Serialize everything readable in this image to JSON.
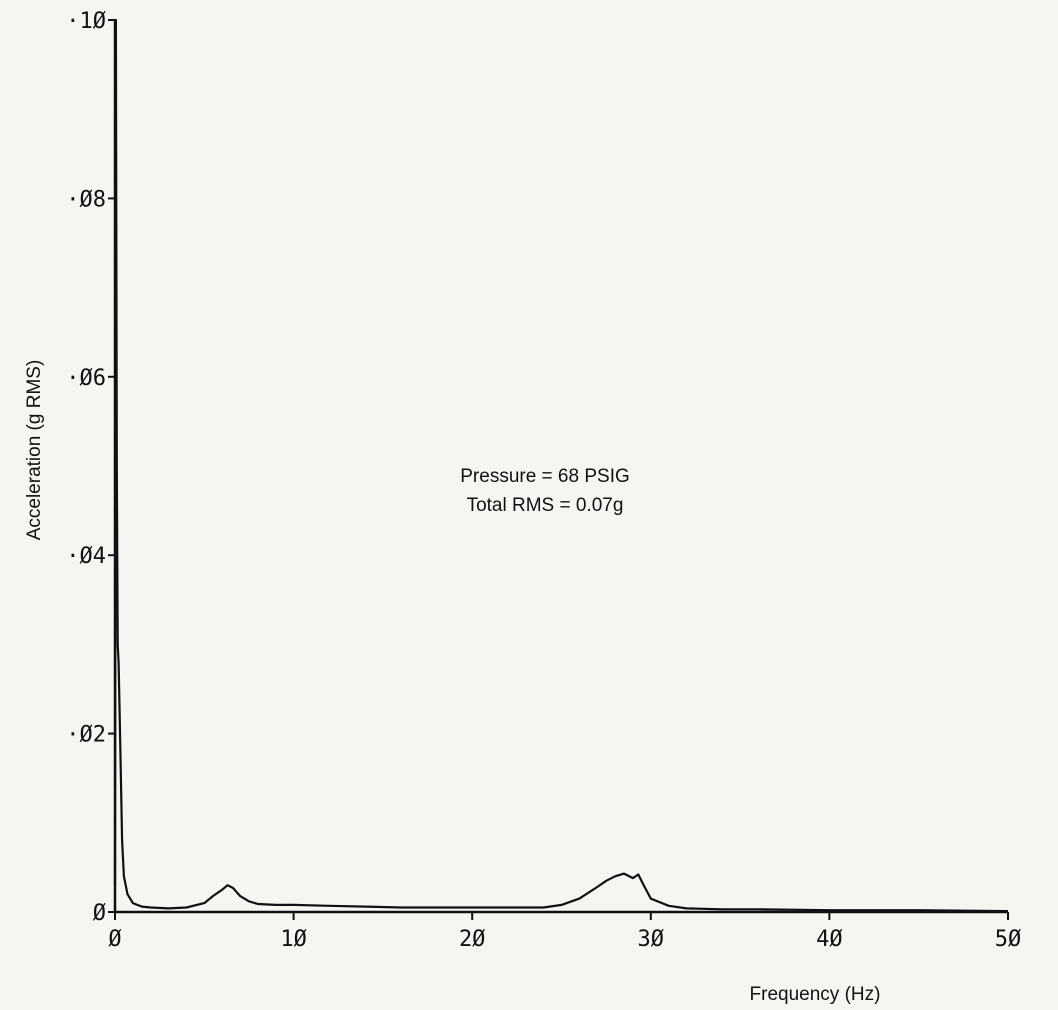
{
  "chart_data": {
    "type": "line",
    "xlabel": "Frequency (Hz)",
    "ylabel": "Acceleration (g RMS)",
    "xlim": [
      0,
      50
    ],
    "ylim": [
      0,
      0.1
    ],
    "x_ticks": [
      0,
      10,
      20,
      30,
      40,
      50
    ],
    "x_tick_labels": [
      "Ø",
      "1Ø",
      "2Ø",
      "3Ø",
      "4Ø",
      "5Ø"
    ],
    "y_ticks": [
      0,
      0.02,
      0.04,
      0.06,
      0.08,
      0.1
    ],
    "y_tick_labels": [
      "Ø",
      "·Ø2",
      "·Ø4",
      "·Ø6",
      "·Ø8",
      "·1Ø"
    ],
    "grid": false,
    "annotations": [
      "Pressure = 68 PSIG",
      "Total RMS = 0.07g"
    ],
    "series": [
      {
        "color": "#111111",
        "x": [
          0,
          0.05,
          0.1,
          0.15,
          0.2,
          0.3,
          0.4,
          0.5,
          0.7,
          1.0,
          1.5,
          2,
          3,
          4,
          5,
          5.5,
          6,
          6.3,
          6.6,
          7,
          7.5,
          8,
          9,
          10,
          12,
          14,
          16,
          18,
          20,
          22,
          24,
          25,
          26,
          27,
          27.5,
          28,
          28.5,
          29,
          29.3,
          29.6,
          30,
          31,
          32,
          34,
          36,
          40,
          45,
          50
        ],
        "y": [
          0.003,
          0.1,
          0.05,
          0.03,
          0.028,
          0.018,
          0.008,
          0.004,
          0.002,
          0.001,
          0.0006,
          0.0005,
          0.0004,
          0.0005,
          0.001,
          0.0018,
          0.0025,
          0.003,
          0.0027,
          0.0018,
          0.0012,
          0.0009,
          0.0008,
          0.0008,
          0.0007,
          0.0006,
          0.0005,
          0.0005,
          0.0005,
          0.0005,
          0.0005,
          0.0008,
          0.0015,
          0.0028,
          0.0035,
          0.004,
          0.0043,
          0.0038,
          0.0042,
          0.003,
          0.0015,
          0.0007,
          0.0004,
          0.0003,
          0.0003,
          0.0002,
          0.0002,
          0.0001
        ]
      }
    ]
  }
}
